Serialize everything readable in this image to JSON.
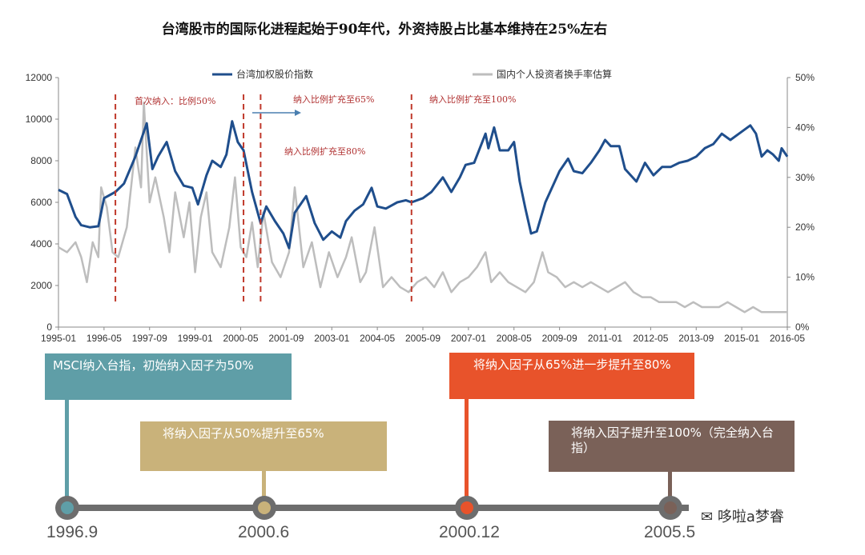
{
  "title": "台湾股市的国际化进程起始于90年代，外资持股占比基本维持在25%左右",
  "legend": {
    "series1": "台湾加权股价指数",
    "series2": "国内个人投资者换手率估算"
  },
  "colors": {
    "series1": "#1f4e8c",
    "series2": "#bdbdbd",
    "event_line": "#c0392b",
    "box_teal": "#5f9ea7",
    "box_tan": "#c9b27a",
    "box_orange": "#e8532b",
    "box_brown": "#7a6158",
    "timeline": "#6d6d6d"
  },
  "annotations": {
    "a1": "首次纳入：比例50%",
    "a2": "纳入比例扩充至65%",
    "a3": "纳入比例扩充至80%",
    "a4": "纳入比例扩充至100%"
  },
  "timeline": {
    "boxes": [
      {
        "text": "MSCI纳入台指，初始纳入因子为50%"
      },
      {
        "text": "将纳入因子从50%提升至65%"
      },
      {
        "text": "将纳入因子从65%进一步提升至80%"
      },
      {
        "text": "将纳入因子提升至100%（完全纳入台指）"
      }
    ],
    "dates": [
      "1996.9",
      "2000.6",
      "2000.12",
      "2005.5"
    ]
  },
  "watermark": "哆啦a梦睿",
  "chart_data": {
    "type": "line",
    "x_start": "1995-01",
    "x_end": "2016-05",
    "x_tick_labels": [
      "1995-01",
      "1996-05",
      "1997-09",
      "1999-01",
      "2000-05",
      "2001-09",
      "2003-01",
      "2004-05",
      "2005-09",
      "2007-01",
      "2008-05",
      "2009-09",
      "2011-01",
      "2012-05",
      "2013-09",
      "2015-01",
      "2016-05"
    ],
    "y_left": {
      "min": 0,
      "max": 12000,
      "ticks": [
        0,
        2000,
        4000,
        6000,
        8000,
        10000,
        12000
      ]
    },
    "y_right": {
      "min": 0,
      "max": 50,
      "ticks": [
        0,
        10,
        20,
        30,
        40,
        50
      ],
      "unit": "%"
    },
    "event_dates": [
      "1996-09",
      "2000-06",
      "2000-12",
      "2005-05"
    ],
    "series": [
      {
        "name": "台湾加权股价指数",
        "axis": "left",
        "points": [
          [
            "1995-01",
            6600
          ],
          [
            "1995-04",
            6400
          ],
          [
            "1995-07",
            5300
          ],
          [
            "1995-09",
            4900
          ],
          [
            "1995-12",
            4800
          ],
          [
            "1996-03",
            4850
          ],
          [
            "1996-05",
            6200
          ],
          [
            "1996-09",
            6500
          ],
          [
            "1996-12",
            6900
          ],
          [
            "1997-04",
            8200
          ],
          [
            "1997-08",
            9800
          ],
          [
            "1997-10",
            7600
          ],
          [
            "1997-12",
            8200
          ],
          [
            "1998-03",
            8900
          ],
          [
            "1998-06",
            7500
          ],
          [
            "1998-09",
            6800
          ],
          [
            "1998-12",
            6700
          ],
          [
            "1999-02",
            5900
          ],
          [
            "1999-05",
            7300
          ],
          [
            "1999-07",
            8000
          ],
          [
            "1999-10",
            7700
          ],
          [
            "1999-12",
            8300
          ],
          [
            "2000-02",
            9900
          ],
          [
            "2000-04",
            8900
          ],
          [
            "2000-06",
            8500
          ],
          [
            "2000-09",
            6500
          ],
          [
            "2000-12",
            5000
          ],
          [
            "2001-02",
            5800
          ],
          [
            "2001-05",
            5100
          ],
          [
            "2001-08",
            4500
          ],
          [
            "2001-10",
            3800
          ],
          [
            "2001-12",
            5500
          ],
          [
            "2002-04",
            6300
          ],
          [
            "2002-07",
            5000
          ],
          [
            "2002-10",
            4200
          ],
          [
            "2003-01",
            4600
          ],
          [
            "2003-04",
            4300
          ],
          [
            "2003-06",
            5100
          ],
          [
            "2003-09",
            5600
          ],
          [
            "2003-12",
            5900
          ],
          [
            "2004-03",
            6700
          ],
          [
            "2004-05",
            5800
          ],
          [
            "2004-08",
            5700
          ],
          [
            "2004-12",
            6000
          ],
          [
            "2005-03",
            6100
          ],
          [
            "2005-05",
            6000
          ],
          [
            "2005-09",
            6200
          ],
          [
            "2005-12",
            6500
          ],
          [
            "2006-04",
            7200
          ],
          [
            "2006-07",
            6500
          ],
          [
            "2006-10",
            7200
          ],
          [
            "2006-12",
            7800
          ],
          [
            "2007-03",
            7900
          ],
          [
            "2007-07",
            9300
          ],
          [
            "2007-08",
            8600
          ],
          [
            "2007-10",
            9600
          ],
          [
            "2007-12",
            8500
          ],
          [
            "2008-03",
            8500
          ],
          [
            "2008-05",
            8900
          ],
          [
            "2008-07",
            7000
          ],
          [
            "2008-09",
            5700
          ],
          [
            "2008-11",
            4500
          ],
          [
            "2009-01",
            4600
          ],
          [
            "2009-04",
            6000
          ],
          [
            "2009-06",
            6600
          ],
          [
            "2009-09",
            7500
          ],
          [
            "2009-12",
            8100
          ],
          [
            "2010-02",
            7500
          ],
          [
            "2010-05",
            7400
          ],
          [
            "2010-08",
            7900
          ],
          [
            "2010-11",
            8500
          ],
          [
            "2011-01",
            9000
          ],
          [
            "2011-03",
            8700
          ],
          [
            "2011-06",
            8700
          ],
          [
            "2011-08",
            7600
          ],
          [
            "2011-12",
            7000
          ],
          [
            "2012-03",
            7900
          ],
          [
            "2012-06",
            7300
          ],
          [
            "2012-09",
            7700
          ],
          [
            "2012-12",
            7700
          ],
          [
            "2013-03",
            7900
          ],
          [
            "2013-06",
            8000
          ],
          [
            "2013-09",
            8200
          ],
          [
            "2013-12",
            8600
          ],
          [
            "2014-03",
            8800
          ],
          [
            "2014-06",
            9300
          ],
          [
            "2014-09",
            9000
          ],
          [
            "2014-12",
            9300
          ],
          [
            "2015-04",
            9700
          ],
          [
            "2015-06",
            9300
          ],
          [
            "2015-08",
            8200
          ],
          [
            "2015-10",
            8500
          ],
          [
            "2015-12",
            8300
          ],
          [
            "2016-02",
            8000
          ],
          [
            "2016-03",
            8600
          ],
          [
            "2016-05",
            8200
          ]
        ]
      },
      {
        "name": "国内个人投资者换手率估算",
        "axis": "right",
        "points": [
          [
            "1995-01",
            16
          ],
          [
            "1995-04",
            15
          ],
          [
            "1995-07",
            17
          ],
          [
            "1995-09",
            14
          ],
          [
            "1995-11",
            9
          ],
          [
            "1996-01",
            17
          ],
          [
            "1996-03",
            14
          ],
          [
            "1996-04",
            28
          ],
          [
            "1996-06",
            24
          ],
          [
            "1996-08",
            15
          ],
          [
            "1996-10",
            14
          ],
          [
            "1997-01",
            20
          ],
          [
            "1997-04",
            36
          ],
          [
            "1997-06",
            28
          ],
          [
            "1997-07",
            45
          ],
          [
            "1997-09",
            25
          ],
          [
            "1997-11",
            30
          ],
          [
            "1998-02",
            22
          ],
          [
            "1998-04",
            15
          ],
          [
            "1998-06",
            27
          ],
          [
            "1998-09",
            18
          ],
          [
            "1998-11",
            25
          ],
          [
            "1999-01",
            11
          ],
          [
            "1999-03",
            22
          ],
          [
            "1999-05",
            27
          ],
          [
            "1999-07",
            15
          ],
          [
            "1999-10",
            12
          ],
          [
            "2000-01",
            20
          ],
          [
            "2000-03",
            30
          ],
          [
            "2000-05",
            16
          ],
          [
            "2000-07",
            14
          ],
          [
            "2000-09",
            21
          ],
          [
            "2000-11",
            12
          ],
          [
            "2001-01",
            23
          ],
          [
            "2001-04",
            13
          ],
          [
            "2001-07",
            10
          ],
          [
            "2001-10",
            15
          ],
          [
            "2001-12",
            28
          ],
          [
            "2002-03",
            12
          ],
          [
            "2002-06",
            17
          ],
          [
            "2002-09",
            8
          ],
          [
            "2002-12",
            15
          ],
          [
            "2003-03",
            10
          ],
          [
            "2003-06",
            14
          ],
          [
            "2003-08",
            18
          ],
          [
            "2003-11",
            9
          ],
          [
            "2004-01",
            11
          ],
          [
            "2004-04",
            20
          ],
          [
            "2004-07",
            8
          ],
          [
            "2004-10",
            10
          ],
          [
            "2005-01",
            8
          ],
          [
            "2005-04",
            7
          ],
          [
            "2005-07",
            9
          ],
          [
            "2005-10",
            10
          ],
          [
            "2006-01",
            8
          ],
          [
            "2006-04",
            11
          ],
          [
            "2006-07",
            7
          ],
          [
            "2006-10",
            9
          ],
          [
            "2007-01",
            10
          ],
          [
            "2007-04",
            12
          ],
          [
            "2007-07",
            15
          ],
          [
            "2007-09",
            9
          ],
          [
            "2007-12",
            11
          ],
          [
            "2008-03",
            9
          ],
          [
            "2008-06",
            8
          ],
          [
            "2008-09",
            7
          ],
          [
            "2008-12",
            9
          ],
          [
            "2009-03",
            15
          ],
          [
            "2009-05",
            11
          ],
          [
            "2009-08",
            10
          ],
          [
            "2009-11",
            8
          ],
          [
            "2010-02",
            9
          ],
          [
            "2010-05",
            8
          ],
          [
            "2010-08",
            9
          ],
          [
            "2010-11",
            8
          ],
          [
            "2011-02",
            7
          ],
          [
            "2011-05",
            8
          ],
          [
            "2011-08",
            9
          ],
          [
            "2011-11",
            7
          ],
          [
            "2012-02",
            6
          ],
          [
            "2012-05",
            6
          ],
          [
            "2012-08",
            5
          ],
          [
            "2012-11",
            5
          ],
          [
            "2013-02",
            5
          ],
          [
            "2013-05",
            4
          ],
          [
            "2013-08",
            5
          ],
          [
            "2013-11",
            4
          ],
          [
            "2014-02",
            4
          ],
          [
            "2014-05",
            4
          ],
          [
            "2014-08",
            5
          ],
          [
            "2014-11",
            4
          ],
          [
            "2015-02",
            3
          ],
          [
            "2015-05",
            4
          ],
          [
            "2015-08",
            3
          ],
          [
            "2015-11",
            3
          ],
          [
            "2016-02",
            3
          ],
          [
            "2016-05",
            3
          ]
        ]
      }
    ]
  }
}
